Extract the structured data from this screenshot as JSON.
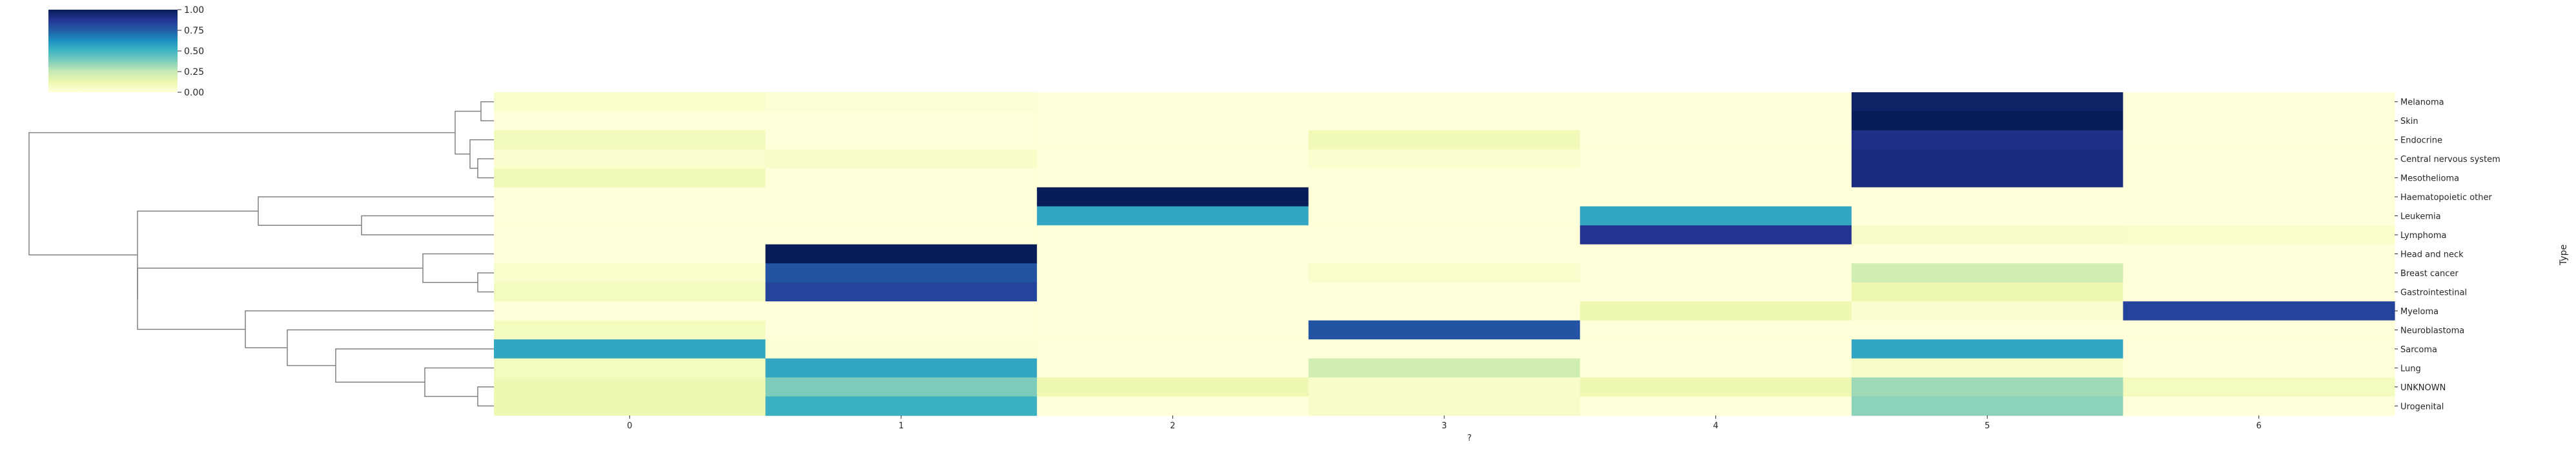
{
  "chart_data": {
    "type": "heatmap",
    "colormap": "YlGnBu",
    "title": "",
    "xlabel": "?",
    "ylabel": "Type",
    "x_categories": [
      "0",
      "1",
      "2",
      "3",
      "4",
      "5",
      "6"
    ],
    "y_categories": [
      "Melanoma",
      "Skin",
      "Endocrine",
      "Central nervous system",
      "Mesothelioma",
      "Haematopoietic other",
      "Leukemia",
      "Lymphoma",
      "Head and neck",
      "Breast cancer",
      "Gastrointestinal",
      "Myeloma",
      "Neuroblastoma",
      "Sarcoma",
      "Lung",
      "UNKNOWN",
      "Urogenital"
    ],
    "values": [
      [
        0.04,
        0.02,
        0.0,
        0.0,
        0.0,
        0.97,
        0.0
      ],
      [
        0.0,
        0.0,
        0.0,
        0.0,
        0.0,
        1.0,
        0.0
      ],
      [
        0.09,
        0.0,
        0.0,
        0.1,
        0.0,
        0.9,
        0.0
      ],
      [
        0.03,
        0.05,
        0.0,
        0.03,
        0.0,
        0.92,
        0.0
      ],
      [
        0.1,
        0.0,
        0.0,
        0.0,
        0.0,
        0.92,
        0.0
      ],
      [
        0.0,
        0.0,
        1.0,
        0.0,
        0.0,
        0.0,
        0.0
      ],
      [
        0.0,
        0.0,
        0.55,
        0.0,
        0.55,
        0.0,
        0.0
      ],
      [
        0.0,
        0.0,
        0.0,
        0.0,
        0.88,
        0.05,
        0.04
      ],
      [
        0.0,
        1.0,
        0.0,
        0.0,
        0.0,
        0.0,
        0.0
      ],
      [
        0.04,
        0.78,
        0.0,
        0.04,
        0.0,
        0.22,
        0.0
      ],
      [
        0.08,
        0.83,
        0.0,
        0.0,
        0.0,
        0.12,
        0.0
      ],
      [
        0.0,
        0.0,
        0.0,
        0.0,
        0.12,
        0.03,
        0.83
      ],
      [
        0.08,
        0.0,
        0.0,
        0.78,
        0.0,
        0.0,
        0.0
      ],
      [
        0.55,
        0.02,
        0.0,
        0.0,
        0.0,
        0.55,
        0.0
      ],
      [
        0.08,
        0.55,
        0.0,
        0.22,
        0.0,
        0.05,
        0.0
      ],
      [
        0.12,
        0.38,
        0.12,
        0.05,
        0.12,
        0.32,
        0.08
      ],
      [
        0.12,
        0.52,
        0.0,
        0.05,
        0.0,
        0.35,
        0.0
      ]
    ],
    "colorbar": {
      "ticks": [
        "0.00",
        "0.25",
        "0.50",
        "0.75",
        "1.00"
      ],
      "range": [
        0,
        1
      ]
    }
  }
}
